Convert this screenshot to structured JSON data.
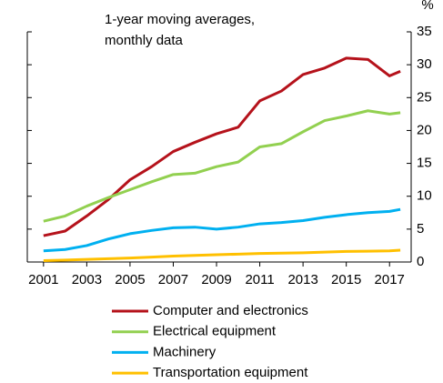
{
  "chart_data": {
    "type": "line",
    "subtitle_lines": [
      "1-year moving averages,",
      "monthly data"
    ],
    "y_unit": "%",
    "x": [
      2001,
      2002,
      2003,
      2004,
      2005,
      2006,
      2007,
      2008,
      2009,
      2010,
      2011,
      2012,
      2013,
      2014,
      2015,
      2016,
      2017,
      2017.5
    ],
    "series": [
      {
        "name": "Computer and electronics",
        "color": "#b5121b",
        "values": [
          4,
          4.7,
          7,
          9.5,
          12.5,
          14.5,
          16.8,
          18.2,
          19.5,
          20.5,
          24.5,
          26,
          28.5,
          29.5,
          31,
          30.8,
          28.3,
          29
        ]
      },
      {
        "name": "Electrical equipment",
        "color": "#92d050",
        "values": [
          6.2,
          7,
          8.5,
          9.8,
          11,
          12.2,
          13.3,
          13.5,
          14.5,
          15.2,
          17.5,
          18,
          19.8,
          21.5,
          22.2,
          23,
          22.5,
          22.7
        ]
      },
      {
        "name": "Machinery",
        "color": "#00b0f0",
        "values": [
          1.7,
          1.9,
          2.5,
          3.5,
          4.3,
          4.8,
          5.2,
          5.3,
          5,
          5.3,
          5.8,
          6,
          6.3,
          6.8,
          7.2,
          7.5,
          7.7,
          8
        ]
      },
      {
        "name": "Transportation equipment",
        "color": "#ffc000",
        "values": [
          0.2,
          0.3,
          0.4,
          0.5,
          0.6,
          0.75,
          0.9,
          1,
          1.1,
          1.2,
          1.3,
          1.35,
          1.4,
          1.5,
          1.6,
          1.65,
          1.7,
          1.8
        ]
      }
    ],
    "xlim": [
      2000.25,
      2018
    ],
    "xticks": [
      2001,
      2003,
      2005,
      2007,
      2009,
      2011,
      2013,
      2015,
      2017
    ],
    "ylim": [
      0,
      35
    ],
    "yticks": [
      0,
      5,
      10,
      15,
      20,
      25,
      30,
      35
    ]
  }
}
